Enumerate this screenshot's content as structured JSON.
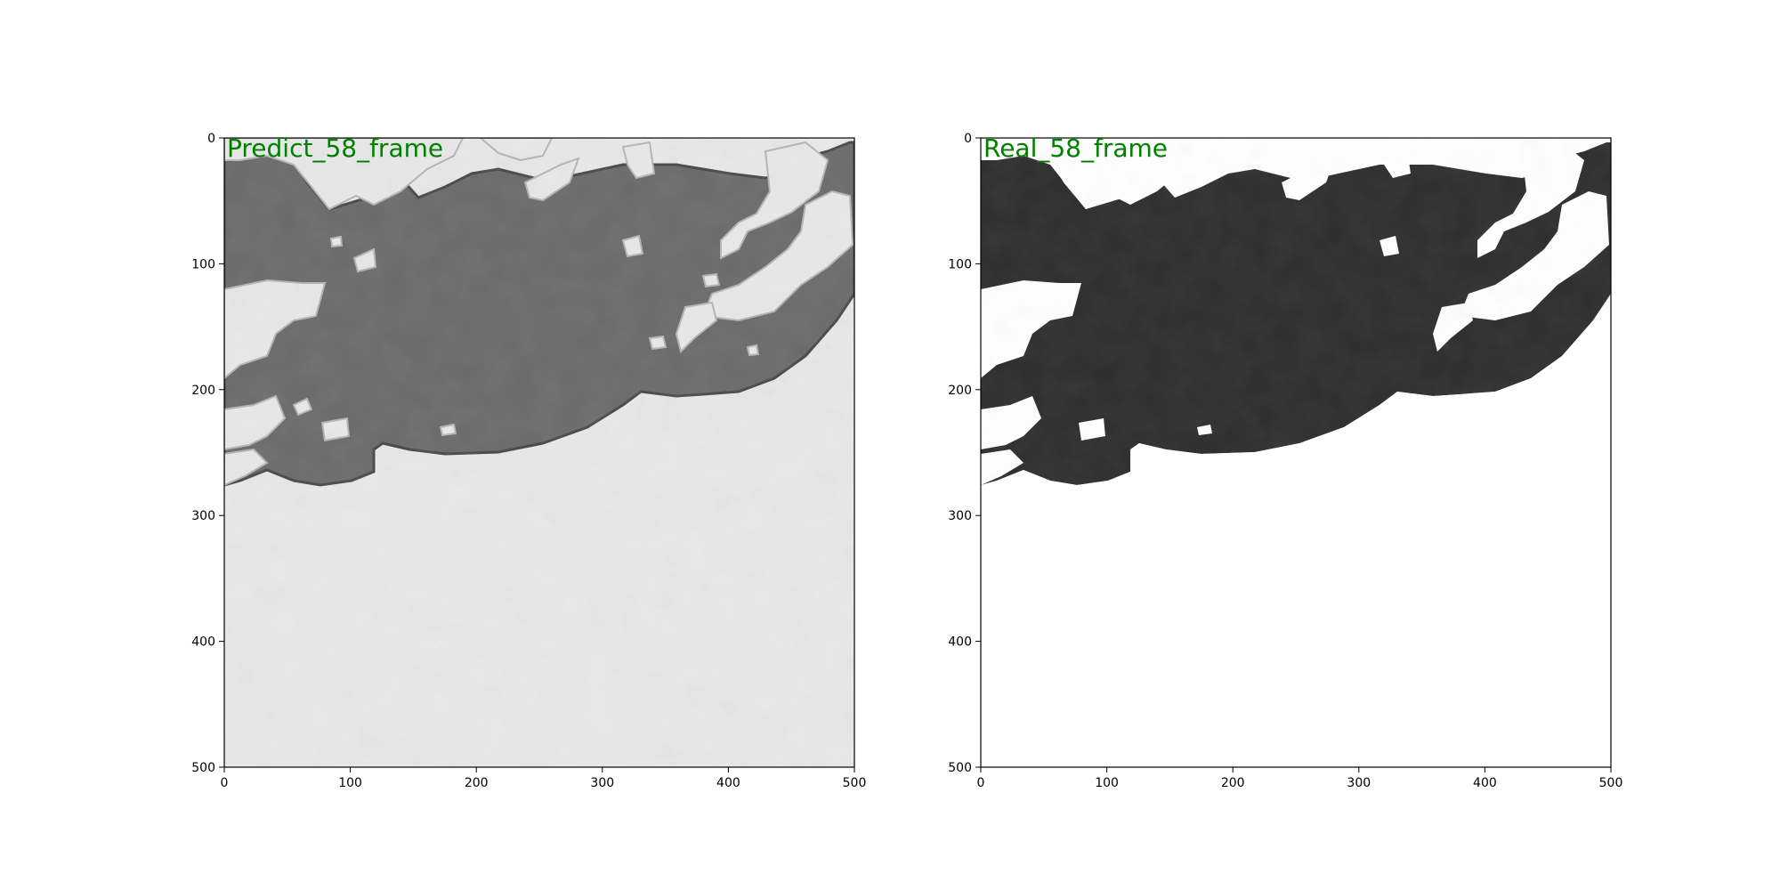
{
  "figure": {
    "panels": [
      {
        "label": "Predict_58_frame",
        "label_color": "#008000",
        "xticks": [
          "0",
          "100",
          "200",
          "300",
          "400",
          "500"
        ],
        "yticks": [
          "0",
          "100",
          "200",
          "300",
          "400",
          "500"
        ],
        "shade": "predict",
        "colors": {
          "background": "#e8e8e8",
          "body": "#6b6b6b",
          "holes": "#e8e8e8"
        }
      },
      {
        "label": "Real_58_frame",
        "label_color": "#008000",
        "xticks": [
          "0",
          "100",
          "200",
          "300",
          "400",
          "500"
        ],
        "yticks": [
          "0",
          "100",
          "200",
          "300",
          "400",
          "500"
        ],
        "shade": "real",
        "colors": {
          "background": "#ffffff",
          "body": "#2e2e2e",
          "holes": "#ffffff"
        }
      }
    ]
  }
}
